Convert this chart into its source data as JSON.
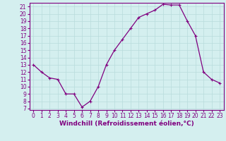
{
  "x": [
    0,
    1,
    2,
    3,
    4,
    5,
    6,
    7,
    8,
    9,
    10,
    11,
    12,
    13,
    14,
    15,
    16,
    17,
    18,
    19,
    20,
    21,
    22,
    23
  ],
  "y": [
    13,
    12,
    11.2,
    11,
    9,
    9,
    7.2,
    8,
    10,
    13,
    15,
    16.5,
    18,
    19.5,
    20,
    20.5,
    21.3,
    21.2,
    21.2,
    19,
    17,
    12,
    11,
    10.5
  ],
  "line_color": "#800080",
  "marker": "+",
  "bg_color": "#d4efef",
  "grid_color": "#b8dcdc",
  "xlabel": "Windchill (Refroidissement éolien,°C)",
  "xlabel_color": "#800080",
  "xlim_min": -0.5,
  "xlim_max": 23.5,
  "ylim_min": 6.8,
  "ylim_max": 21.5,
  "yticks": [
    7,
    8,
    9,
    10,
    11,
    12,
    13,
    14,
    15,
    16,
    17,
    18,
    19,
    20,
    21
  ],
  "xticks": [
    0,
    1,
    2,
    3,
    4,
    5,
    6,
    7,
    8,
    9,
    10,
    11,
    12,
    13,
    14,
    15,
    16,
    17,
    18,
    19,
    20,
    21,
    22,
    23
  ],
  "tick_color": "#800080",
  "axis_color": "#800080",
  "font_size": 5.5,
  "xlabel_fontsize": 6.5,
  "marker_size": 3,
  "line_width": 0.9
}
